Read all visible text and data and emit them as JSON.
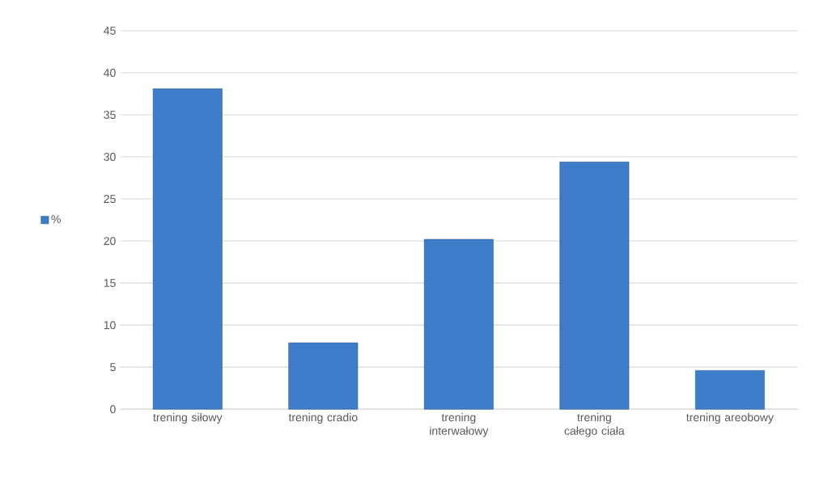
{
  "chart_data": {
    "type": "bar",
    "categories": [
      "trening siłowy",
      "trening cradio",
      "trening interwałowy",
      "trening całego ciała",
      "trening areobowy"
    ],
    "series": [
      {
        "name": "%",
        "color": "#3d7cc9",
        "values": [
          38.1,
          7.9,
          20.2,
          29.4,
          4.6
        ]
      }
    ],
    "ylim": [
      0,
      45
    ],
    "yticks": [
      0,
      5,
      10,
      15,
      20,
      25,
      30,
      35,
      40,
      45
    ],
    "grid": "y",
    "legend": "left"
  }
}
